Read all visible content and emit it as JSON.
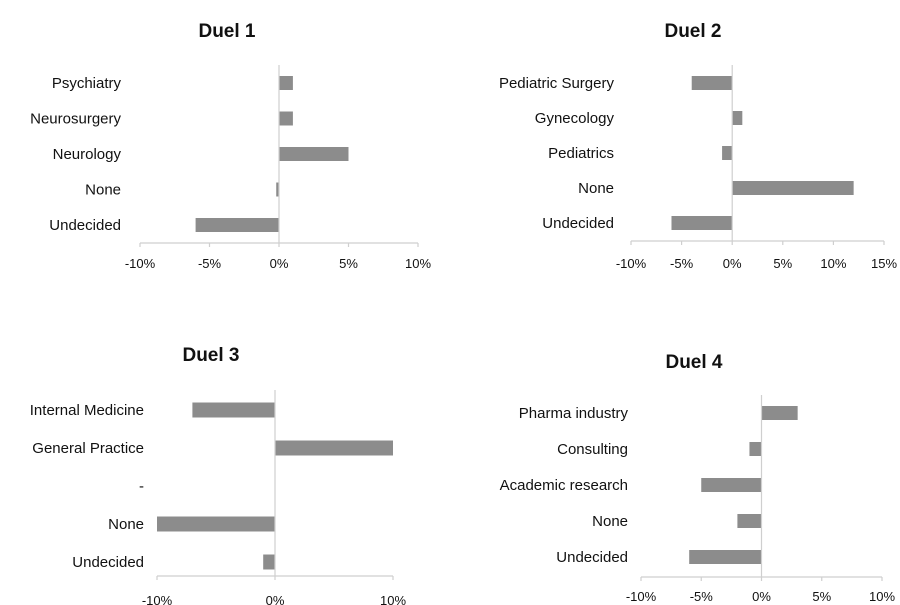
{
  "chart_data": [
    {
      "type": "bar",
      "orientation": "horizontal",
      "title": "Duel 1",
      "categories": [
        "Psychiatry",
        "Neurosurgery",
        "Neurology",
        "None",
        "Undecided"
      ],
      "values": [
        1,
        1,
        5,
        -0.2,
        -6
      ],
      "xlim": [
        -10,
        10
      ],
      "xticks": [
        -10,
        -5,
        0,
        5,
        10
      ],
      "tick_labels": [
        "-10%",
        "-5%",
        "0%",
        "5%",
        "10%"
      ],
      "grid": false,
      "bar_color": "#8c8c8c"
    },
    {
      "type": "bar",
      "orientation": "horizontal",
      "title": "Duel 2",
      "categories": [
        "Pediatric Surgery",
        "Gynecology",
        "Pediatrics",
        "None",
        "Undecided"
      ],
      "values": [
        -4,
        1,
        -1,
        12,
        -6
      ],
      "xlim": [
        -10,
        15
      ],
      "xticks": [
        -10,
        -5,
        0,
        5,
        10,
        15
      ],
      "tick_labels": [
        "-10%",
        "-5%",
        "0%",
        "5%",
        "10%",
        "15%"
      ],
      "grid": false,
      "bar_color": "#8c8c8c"
    },
    {
      "type": "bar",
      "orientation": "horizontal",
      "title": "Duel 3",
      "categories": [
        "Internal Medicine",
        "General Practice",
        "-",
        "None",
        "Undecided"
      ],
      "values": [
        -7,
        10,
        0,
        -10,
        -1
      ],
      "xlim": [
        -10,
        10
      ],
      "xticks": [
        -10,
        0,
        10
      ],
      "tick_labels": [
        "-10%",
        "0%",
        "10%"
      ],
      "grid": false,
      "bar_color": "#8c8c8c"
    },
    {
      "type": "bar",
      "orientation": "horizontal",
      "title": "Duel 4",
      "categories": [
        "Pharma industry",
        "Consulting",
        "Academic research",
        "None",
        "Undecided"
      ],
      "values": [
        3,
        -1,
        -5,
        -2,
        -6
      ],
      "xlim": [
        -10,
        10
      ],
      "xticks": [
        -10,
        -5,
        0,
        5,
        10
      ],
      "tick_labels": [
        "-10%",
        "-5%",
        "0%",
        "5%",
        "10%"
      ],
      "grid": false,
      "bar_color": "#8c8c8c"
    }
  ]
}
